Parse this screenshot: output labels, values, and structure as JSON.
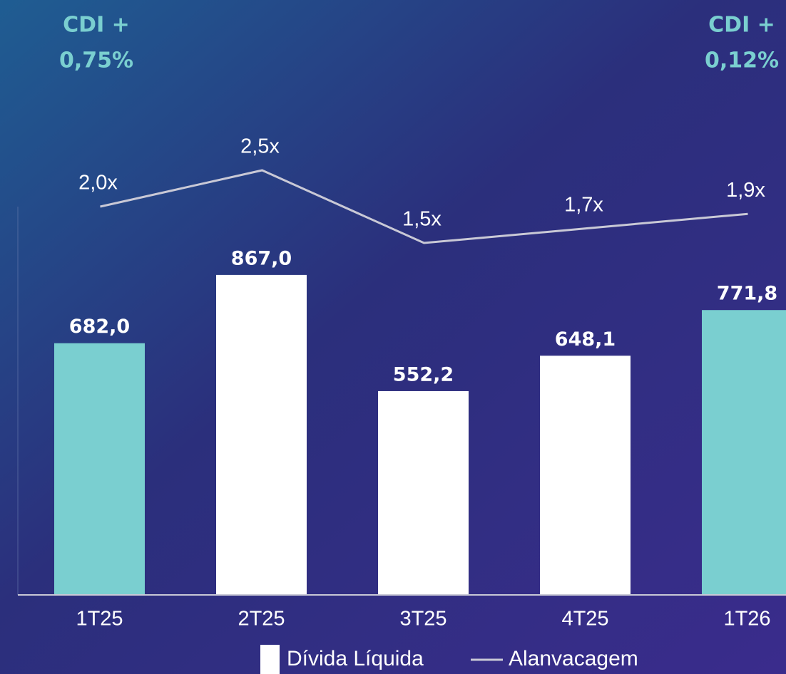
{
  "chart_data": {
    "type": "bar-line",
    "categories": [
      "1T25",
      "2T25",
      "3T25",
      "4T25",
      "1T26"
    ],
    "series": [
      {
        "name": "Dívida Líquida",
        "type": "bar",
        "color": "#ffffff",
        "colors": [
          "#7acfd0",
          "#ffffff",
          "#ffffff",
          "#ffffff",
          "#7acfd0"
        ],
        "values": [
          682.0,
          867.0,
          552.2,
          648.1,
          771.8
        ],
        "value_labels": [
          "682,0",
          "867,0",
          "552,2",
          "648,1",
          "771,8"
        ]
      },
      {
        "name": "Alanvacagem",
        "type": "line",
        "axis": "y2",
        "color": "#c9c9d6",
        "values": [
          2.0,
          2.5,
          1.5,
          1.7,
          1.9
        ],
        "value_labels": [
          "2,0x",
          "2,5x",
          "1,5x",
          "1,7x",
          "1,9x"
        ]
      }
    ],
    "ylim": [
      0,
      1000
    ],
    "y2lim": [
      0,
      3
    ],
    "annotations": [
      [
        "CDI +",
        "0,75%"
      ],
      [
        "CDI +",
        "0,12%"
      ]
    ],
    "annotation_color": "#7acfd0"
  }
}
